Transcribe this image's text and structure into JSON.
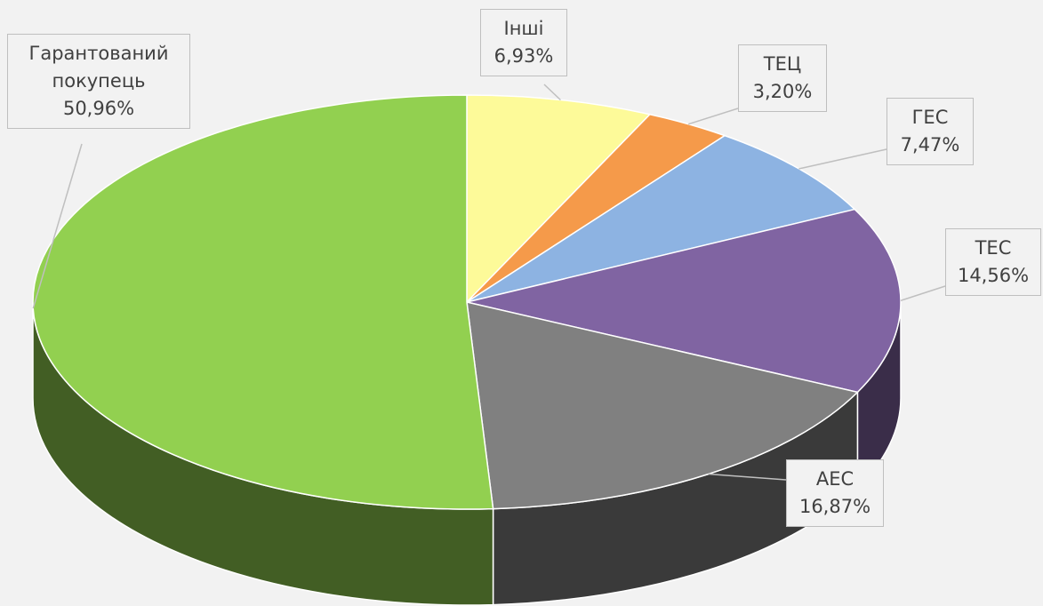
{
  "chart_data": {
    "type": "pie",
    "categories": [
      "Інші",
      "ТЕЦ",
      "ГЕС",
      "ТЕС",
      "АЕС",
      "Гарантований покупець"
    ],
    "values": [
      6.93,
      3.2,
      7.47,
      14.56,
      16.87,
      50.96
    ],
    "value_labels": [
      "6,93%",
      "3,20%",
      "7,47%",
      "14,56%",
      "16,87%",
      "50,96%"
    ],
    "colors": [
      "#fdfa99",
      "#f59a4a",
      "#8db3e2",
      "#8064a2",
      "#808080",
      "#92d050"
    ]
  }
}
